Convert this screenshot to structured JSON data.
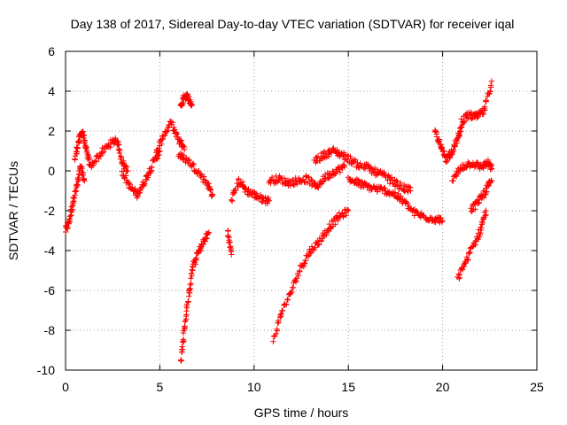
{
  "chart_data": {
    "type": "scatter",
    "title": "Day 138 of 2017, Sidereal Day-to-day VTEC variation (SDTVAR) for receiver iqal",
    "xlabel": "GPS time / hours",
    "ylabel": "SDTVAR / TECUs",
    "xlim": [
      0,
      25
    ],
    "ylim": [
      -10,
      6
    ],
    "xticks": [
      0,
      5,
      10,
      15,
      20,
      25
    ],
    "yticks": [
      -10,
      -8,
      -6,
      -4,
      -2,
      0,
      2,
      4,
      6
    ],
    "grid": true,
    "marker": "+",
    "color": "#ff0000",
    "segments": [
      {
        "x": [
          0.0,
          0.2,
          0.4,
          0.6,
          0.8,
          1.0
        ],
        "y": [
          -3.0,
          -2.5,
          -1.5,
          -0.8,
          0.2,
          -0.5
        ]
      },
      {
        "x": [
          0.5,
          0.7,
          0.9,
          1.1,
          1.3
        ],
        "y": [
          0.6,
          1.5,
          2.0,
          1.0,
          0.3
        ]
      },
      {
        "x": [
          1.3,
          1.8,
          2.3,
          2.7,
          3.0,
          3.3
        ],
        "y": [
          0.2,
          0.8,
          1.3,
          1.6,
          0.5,
          0.0
        ]
      },
      {
        "x": [
          3.0,
          3.4,
          3.8,
          4.2,
          4.6,
          5.0
        ],
        "y": [
          0.0,
          -0.8,
          -1.2,
          -0.5,
          0.3,
          1.0
        ]
      },
      {
        "x": [
          4.8,
          5.2,
          5.6,
          6.0,
          6.3
        ],
        "y": [
          0.8,
          1.8,
          2.4,
          1.5,
          1.2
        ]
      },
      {
        "x": [
          6.1,
          6.3,
          6.5,
          6.7
        ],
        "y": [
          3.2,
          3.8,
          3.7,
          3.3
        ]
      },
      {
        "x": [
          6.0,
          6.5,
          7.0,
          7.5,
          7.8
        ],
        "y": [
          0.8,
          0.5,
          0.0,
          -0.6,
          -1.2
        ]
      },
      {
        "x": [
          6.1,
          6.3,
          6.5,
          6.7,
          7.0,
          7.3,
          7.6
        ],
        "y": [
          -9.6,
          -8.0,
          -6.5,
          -5.0,
          -4.2,
          -3.6,
          -3.1
        ]
      },
      {
        "x": [
          8.6,
          8.8
        ],
        "y": [
          -3.0,
          -4.2
        ]
      },
      {
        "x": [
          8.8,
          9.2,
          9.6,
          10.0,
          10.4,
          10.8
        ],
        "y": [
          -1.5,
          -0.5,
          -1.0,
          -1.2,
          -1.4,
          -1.5
        ]
      },
      {
        "x": [
          10.8,
          11.3,
          11.8,
          12.3,
          12.8,
          13.3,
          13.8,
          14.3,
          14.8
        ],
        "y": [
          -0.5,
          -0.4,
          -0.6,
          -0.5,
          -0.4,
          -0.8,
          -0.3,
          0.0,
          0.2
        ]
      },
      {
        "x": [
          11.0,
          11.5,
          12.0,
          12.5,
          13.0,
          13.5,
          14.0,
          14.5,
          15.0
        ],
        "y": [
          -8.5,
          -7.0,
          -6.0,
          -4.8,
          -4.0,
          -3.5,
          -2.8,
          -2.3,
          -2.0
        ]
      },
      {
        "x": [
          13.2,
          13.7,
          14.2,
          14.7,
          15.2,
          15.7
        ],
        "y": [
          0.5,
          0.8,
          1.0,
          0.8,
          0.5,
          0.2
        ]
      },
      {
        "x": [
          15.0,
          15.5,
          16.0,
          16.5,
          17.0,
          17.5,
          18.0,
          18.5,
          19.0,
          19.5,
          20.0
        ],
        "y": [
          -0.4,
          -0.6,
          -0.8,
          -0.9,
          -1.0,
          -1.2,
          -1.6,
          -2.1,
          -2.3,
          -2.4,
          -2.5
        ]
      },
      {
        "x": [
          15.8,
          16.3,
          16.8,
          17.3,
          17.8,
          18.3
        ],
        "y": [
          0.3,
          0.0,
          -0.2,
          -0.5,
          -0.8,
          -1.0
        ]
      },
      {
        "x": [
          19.6,
          19.9,
          20.2,
          20.5,
          20.8,
          21.0
        ],
        "y": [
          2.0,
          1.2,
          0.6,
          1.0,
          1.6,
          2.2
        ]
      },
      {
        "x": [
          21.0,
          21.4,
          21.8,
          22.2,
          22.6
        ],
        "y": [
          2.5,
          2.8,
          2.7,
          3.0,
          4.5
        ]
      },
      {
        "x": [
          20.5,
          21.0,
          21.5,
          22.0,
          22.4,
          22.6
        ],
        "y": [
          -0.5,
          0.2,
          0.4,
          0.2,
          0.4,
          0.1
        ]
      },
      {
        "x": [
          20.8,
          21.2,
          21.6,
          22.0,
          22.3
        ],
        "y": [
          -5.4,
          -4.6,
          -3.8,
          -3.0,
          -2.0
        ]
      },
      {
        "x": [
          21.5,
          21.9,
          22.3,
          22.6
        ],
        "y": [
          -2.0,
          -1.5,
          -1.0,
          -0.5
        ]
      }
    ]
  }
}
